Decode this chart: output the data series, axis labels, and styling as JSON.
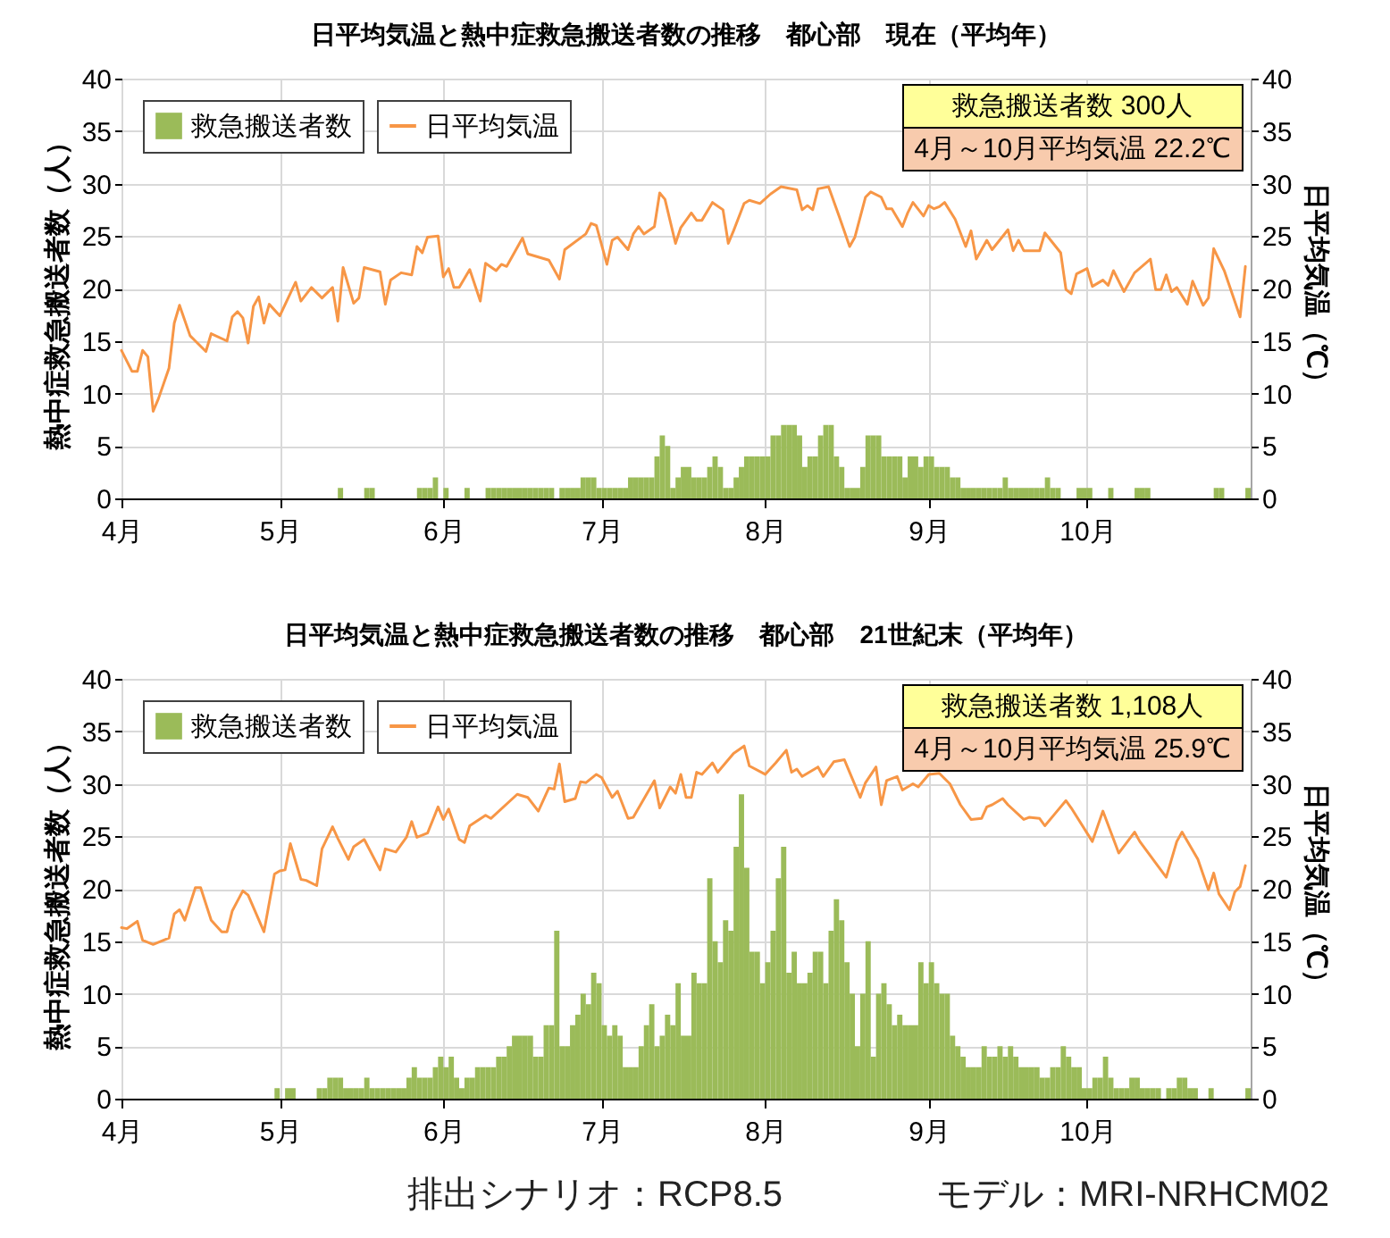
{
  "chart_data": [
    {
      "type": "bar",
      "title": "日平均気温と熱中症救急搬送者数の推移　都心部　現在（平均年）",
      "ylabel": "熱中症救急搬送者数（人）",
      "y2label": "日平均気温（℃）",
      "xlim": [
        "--04-01",
        "--11-01"
      ],
      "xticks": [
        {
          "value": "--04-01",
          "label": "4月"
        },
        {
          "value": "--05-01",
          "label": "5月"
        },
        {
          "value": "--06-01",
          "label": "6月"
        },
        {
          "value": "--07-01",
          "label": "7月"
        },
        {
          "value": "--08-01",
          "label": "8月"
        },
        {
          "value": "--09-01",
          "label": "9月"
        },
        {
          "value": "--10-01",
          "label": "10月"
        }
      ],
      "ylim": [
        0,
        40
      ],
      "yticks": [
        0,
        5,
        10,
        15,
        20,
        25,
        30,
        35,
        40
      ],
      "y2lim": [
        0,
        40
      ],
      "y2ticks": [
        0,
        5,
        10,
        15,
        20,
        25,
        30,
        35,
        40
      ],
      "grid": true,
      "legend": "top left",
      "annotations": [
        "救急搬送者数  300人",
        "4月～10月平均気温  22.2℃"
      ],
      "series": [
        {
          "name": "救急搬送者数",
          "color": "#9bbb59",
          "x": [
            "--05-12",
            "--05-17",
            "--05-18",
            "--05-27",
            "--05-28",
            "--05-29",
            "--05-30",
            "--06-01",
            "--06-05",
            "--06-09",
            "--06-10",
            "--06-11",
            "--06-12",
            "--06-13",
            "--06-14",
            "--06-15",
            "--06-16",
            "--06-17",
            "--06-18",
            "--06-19",
            "--06-20",
            "--06-21",
            "--06-23",
            "--06-24",
            "--06-25",
            "--06-26",
            "--06-27",
            "--06-28",
            "--06-29",
            "--06-30",
            "--07-01",
            "--07-02",
            "--07-03",
            "--07-04",
            "--07-05",
            "--07-06",
            "--07-07",
            "--07-08",
            "--07-09",
            "--07-10",
            "--07-11",
            "--07-12",
            "--07-13",
            "--07-14",
            "--07-15",
            "--07-16",
            "--07-17",
            "--07-18",
            "--07-19",
            "--07-20",
            "--07-21",
            "--07-22",
            "--07-23",
            "--07-24",
            "--07-25",
            "--07-26",
            "--07-27",
            "--07-28",
            "--07-29",
            "--07-30",
            "--07-31",
            "--08-01",
            "--08-02",
            "--08-03",
            "--08-04",
            "--08-05",
            "--08-06",
            "--08-07",
            "--08-08",
            "--08-09",
            "--08-10",
            "--08-11",
            "--08-12",
            "--08-13",
            "--08-14",
            "--08-15",
            "--08-16",
            "--08-17",
            "--08-18",
            "--08-19",
            "--08-20",
            "--08-21",
            "--08-22",
            "--08-23",
            "--08-24",
            "--08-25",
            "--08-26",
            "--08-27",
            "--08-28",
            "--08-29",
            "--08-30",
            "--08-31",
            "--09-01",
            "--09-02",
            "--09-03",
            "--09-04",
            "--09-05",
            "--09-06",
            "--09-07",
            "--09-08",
            "--09-09",
            "--09-10",
            "--09-11",
            "--09-12",
            "--09-13",
            "--09-14",
            "--09-15",
            "--09-16",
            "--09-17",
            "--09-18",
            "--09-19",
            "--09-20",
            "--09-21",
            "--09-22",
            "--09-23",
            "--09-24",
            "--09-25",
            "--09-29",
            "--09-30",
            "--10-01",
            "--10-05",
            "--10-10",
            "--10-11",
            "--10-12",
            "--10-25",
            "--10-26",
            "--10-31"
          ],
          "values": [
            1,
            1,
            1,
            1,
            1,
            1,
            2,
            1,
            1,
            1,
            1,
            1,
            1,
            1,
            1,
            1,
            1,
            1,
            1,
            1,
            1,
            1,
            1,
            1,
            1,
            1,
            2,
            2,
            2,
            1,
            1,
            1,
            1,
            1,
            1,
            2,
            2,
            2,
            2,
            2,
            4,
            6,
            5,
            1,
            2,
            3,
            3,
            2,
            2,
            2,
            3,
            4,
            3,
            1,
            1,
            2,
            3,
            4,
            4,
            4,
            4,
            4,
            6,
            6,
            7,
            7,
            7,
            6,
            3,
            4,
            4,
            6,
            7,
            7,
            4,
            3,
            1,
            1,
            1,
            3,
            6,
            6,
            6,
            4,
            4,
            4,
            4,
            2,
            4,
            4,
            3,
            4,
            4,
            3,
            3,
            3,
            2,
            2,
            1,
            1,
            1,
            1,
            1,
            1,
            1,
            1,
            2,
            1,
            1,
            1,
            1,
            1,
            1,
            1,
            2,
            1,
            1,
            1,
            1,
            1,
            1,
            1,
            1,
            1,
            1,
            1,
            1
          ]
        },
        {
          "name": "日平均気温",
          "type": "line",
          "axis": "y2",
          "color": "#f79646",
          "x": [
            "--04-01",
            "--04-03",
            "--04-04",
            "--04-05",
            "--04-06",
            "--04-07",
            "--04-08",
            "--04-10",
            "--04-11",
            "--04-12",
            "--04-14",
            "--04-15",
            "--04-17",
            "--04-18",
            "--04-21",
            "--04-22",
            "--04-23",
            "--04-24",
            "--04-25",
            "--04-26",
            "--04-27",
            "--04-28",
            "--04-29",
            "--05-01",
            "--05-04",
            "--05-05",
            "--05-07",
            "--05-09",
            "--05-11",
            "--05-12",
            "--05-13",
            "--05-15",
            "--05-16",
            "--05-17",
            "--05-20",
            "--05-21",
            "--05-22",
            "--05-24",
            "--05-26",
            "--05-27",
            "--05-28",
            "--05-29",
            "--05-31",
            "--06-01",
            "--06-02",
            "--06-03",
            "--06-04",
            "--06-06",
            "--06-08",
            "--06-09",
            "--06-11",
            "--06-12",
            "--06-13",
            "--06-16",
            "--06-17",
            "--06-21",
            "--06-23",
            "--06-24",
            "--06-28",
            "--06-29",
            "--06-30",
            "--07-02",
            "--07-03",
            "--07-04",
            "--07-06",
            "--07-07",
            "--07-08",
            "--07-09",
            "--07-11",
            "--07-12",
            "--07-13",
            "--07-15",
            "--07-16",
            "--07-18",
            "--07-19",
            "--07-20",
            "--07-22",
            "--07-24",
            "--07-25",
            "--07-26",
            "--07-28",
            "--07-29",
            "--07-31",
            "--08-02",
            "--08-04",
            "--08-07",
            "--08-08",
            "--08-09",
            "--08-10",
            "--08-11",
            "--08-13",
            "--08-15",
            "--08-17",
            "--08-18",
            "--08-20",
            "--08-21",
            "--08-23",
            "--08-24",
            "--08-25",
            "--08-27",
            "--08-28",
            "--08-29",
            "--08-31",
            "--09-01",
            "--09-02",
            "--09-03",
            "--09-04",
            "--09-06",
            "--09-08",
            "--09-09",
            "--09-10",
            "--09-12",
            "--09-13",
            "--09-16",
            "--09-17",
            "--09-18",
            "--09-19",
            "--09-22",
            "--09-23",
            "--09-26",
            "--09-27",
            "--09-28",
            "--09-29",
            "--10-01",
            "--10-02",
            "--10-04",
            "--10-05",
            "--10-06",
            "--10-08",
            "--10-10",
            "--10-13",
            "--10-14",
            "--10-15",
            "--10-16",
            "--10-17",
            "--10-18",
            "--10-20",
            "--10-21",
            "--10-23",
            "--10-24",
            "--10-25",
            "--10-27",
            "--10-30",
            "--10-31"
          ],
          "values": [
            14.1,
            12.1,
            12.1,
            14.1,
            13.5,
            8.3,
            9.5,
            12.4,
            16.7,
            18.4,
            15.5,
            15.0,
            14.0,
            15.7,
            15.0,
            17.3,
            17.8,
            17.2,
            14.8,
            18.3,
            19.2,
            16.7,
            18.5,
            17.4,
            20.6,
            18.8,
            20.1,
            19.1,
            20.1,
            16.9,
            22.0,
            18.6,
            19.1,
            22.0,
            21.6,
            18.5,
            20.8,
            21.5,
            21.3,
            24.0,
            23.4,
            24.9,
            25.0,
            21.1,
            21.9,
            20.1,
            20.1,
            21.8,
            18.8,
            22.4,
            21.7,
            22.3,
            22.1,
            24.8,
            23.3,
            22.7,
            20.9,
            23.7,
            25.2,
            26.2,
            26.0,
            22.3,
            24.6,
            24.9,
            23.7,
            25.2,
            25.9,
            25.2,
            25.9,
            29.1,
            28.5,
            24.3,
            25.8,
            27.2,
            26.5,
            26.5,
            28.2,
            27.5,
            24.3,
            25.5,
            28.1,
            28.4,
            28.1,
            29.0,
            29.7,
            29.4,
            27.5,
            27.9,
            27.5,
            29.5,
            29.7,
            26.9,
            24.0,
            24.9,
            28.7,
            29.2,
            28.7,
            27.6,
            27.6,
            25.9,
            27.2,
            28.2,
            26.9,
            27.9,
            27.6,
            27.8,
            28.2,
            26.6,
            24.0,
            25.5,
            22.8,
            24.6,
            23.7,
            25.6,
            23.6,
            24.6,
            23.6,
            23.6,
            25.3,
            23.4,
            19.9,
            19.5,
            21.4,
            21.9,
            20.2,
            20.8,
            20.3,
            21.7,
            19.7,
            21.5,
            22.8,
            19.9,
            19.9,
            21.3,
            19.7,
            20.1,
            18.5,
            20.7,
            18.4,
            19.1,
            23.8,
            21.7,
            17.3,
            22.1
          ]
        }
      ]
    },
    {
      "type": "bar",
      "title": "日平均気温と熱中症救急搬送者数の推移　都心部　21世紀末（平均年）",
      "ylabel": "熱中症救急搬送者数（人）",
      "y2label": "日平均気温（℃）",
      "xlim": [
        "--04-01",
        "--11-01"
      ],
      "xticks": [
        {
          "value": "--04-01",
          "label": "4月"
        },
        {
          "value": "--05-01",
          "label": "5月"
        },
        {
          "value": "--06-01",
          "label": "6月"
        },
        {
          "value": "--07-01",
          "label": "7月"
        },
        {
          "value": "--08-01",
          "label": "8月"
        },
        {
          "value": "--09-01",
          "label": "9月"
        },
        {
          "value": "--10-01",
          "label": "10月"
        }
      ],
      "ylim": [
        0,
        40
      ],
      "yticks": [
        0,
        5,
        10,
        15,
        20,
        25,
        30,
        35,
        40
      ],
      "y2lim": [
        0,
        40
      ],
      "y2ticks": [
        0,
        5,
        10,
        15,
        20,
        25,
        30,
        35,
        40
      ],
      "grid": true,
      "legend": "top left",
      "annotations": [
        "救急搬送者数  1,108人",
        "4月～10月平均気温  25.9℃",
        "排出シナリオ：RCP8.5",
        "モデル：MRI-NRHCM02"
      ],
      "series": [
        {
          "name": "救急搬送者数",
          "color": "#9bbb59",
          "x": [
            "--04-30",
            "--05-02",
            "--05-03",
            "--05-08",
            "--05-09",
            "--05-10",
            "--05-11",
            "--05-12",
            "--05-13",
            "--05-14",
            "--05-15",
            "--05-16",
            "--05-17",
            "--05-18",
            "--05-19",
            "--05-20",
            "--05-21",
            "--05-22",
            "--05-23",
            "--05-24",
            "--05-25",
            "--05-26",
            "--05-27",
            "--05-28",
            "--05-29",
            "--05-30",
            "--05-31",
            "--06-01",
            "--06-02",
            "--06-03",
            "--06-04",
            "--06-05",
            "--06-06",
            "--06-07",
            "--06-08",
            "--06-09",
            "--06-10",
            "--06-11",
            "--06-12",
            "--06-13",
            "--06-14",
            "--06-15",
            "--06-16",
            "--06-17",
            "--06-18",
            "--06-19",
            "--06-20",
            "--06-21",
            "--06-22",
            "--06-23",
            "--06-24",
            "--06-25",
            "--06-26",
            "--06-27",
            "--06-28",
            "--06-29",
            "--06-30",
            "--07-01",
            "--07-02",
            "--07-03",
            "--07-04",
            "--07-05",
            "--07-06",
            "--07-07",
            "--07-08",
            "--07-09",
            "--07-10",
            "--07-11",
            "--07-12",
            "--07-13",
            "--07-14",
            "--07-15",
            "--07-16",
            "--07-17",
            "--07-18",
            "--07-19",
            "--07-20",
            "--07-21",
            "--07-22",
            "--07-23",
            "--07-24",
            "--07-25",
            "--07-26",
            "--07-27",
            "--07-28",
            "--07-29",
            "--07-30",
            "--07-31",
            "--08-01",
            "--08-02",
            "--08-03",
            "--08-04",
            "--08-05",
            "--08-06",
            "--08-07",
            "--08-08",
            "--08-09",
            "--08-10",
            "--08-11",
            "--08-12",
            "--08-13",
            "--08-14",
            "--08-15",
            "--08-16",
            "--08-17",
            "--08-18",
            "--08-19",
            "--08-20",
            "--08-21",
            "--08-22",
            "--08-23",
            "--08-24",
            "--08-25",
            "--08-26",
            "--08-27",
            "--08-28",
            "--08-29",
            "--08-30",
            "--08-31",
            "--09-01",
            "--09-02",
            "--09-03",
            "--09-04",
            "--09-05",
            "--09-06",
            "--09-07",
            "--09-08",
            "--09-09",
            "--09-10",
            "--09-11",
            "--09-12",
            "--09-13",
            "--09-14",
            "--09-15",
            "--09-16",
            "--09-17",
            "--09-18",
            "--09-19",
            "--09-20",
            "--09-21",
            "--09-22",
            "--09-23",
            "--09-24",
            "--09-25",
            "--09-26",
            "--09-27",
            "--09-28",
            "--09-29",
            "--09-30",
            "--10-01",
            "--10-02",
            "--10-03",
            "--10-04",
            "--10-05",
            "--10-06",
            "--10-07",
            "--10-08",
            "--10-09",
            "--10-10",
            "--10-11",
            "--10-12",
            "--10-13",
            "--10-14",
            "--10-16",
            "--10-17",
            "--10-18",
            "--10-19",
            "--10-20",
            "--10-21",
            "--10-24",
            "--10-31"
          ],
          "values": [
            1,
            1,
            1,
            1,
            1,
            2,
            2,
            2,
            1,
            1,
            1,
            1,
            2,
            1,
            1,
            1,
            1,
            1,
            1,
            1,
            2,
            3,
            2,
            2,
            2,
            3,
            4,
            3,
            4,
            2,
            1,
            2,
            2,
            3,
            3,
            3,
            3,
            4,
            4,
            5,
            6,
            6,
            6,
            6,
            4,
            4,
            7,
            7,
            16,
            5,
            5,
            7,
            8,
            10,
            9,
            12,
            11,
            7,
            6,
            7,
            6,
            3,
            3,
            3,
            5,
            7,
            9,
            5,
            6,
            8,
            7,
            11,
            6,
            6,
            12,
            11,
            11,
            21,
            15,
            13,
            17,
            16,
            24,
            29,
            22,
            14,
            14,
            11,
            13,
            16,
            21,
            24,
            12,
            14,
            11,
            11,
            12,
            14,
            14,
            11,
            16,
            19,
            17,
            13,
            10,
            5,
            10,
            15,
            4,
            10,
            11,
            9,
            7,
            8,
            7,
            7,
            7,
            13,
            11,
            13,
            11,
            10,
            10,
            6,
            5,
            4,
            3,
            3,
            3,
            5,
            4,
            4,
            5,
            4,
            5,
            4,
            3,
            3,
            3,
            3,
            2,
            2,
            3,
            3,
            5,
            4,
            3,
            3,
            1,
            1,
            2,
            2,
            4,
            2,
            1,
            1,
            1,
            2,
            2,
            1,
            1,
            1,
            1,
            1,
            1,
            2,
            2,
            1,
            1,
            1,
            1
          ]
        },
        {
          "name": "日平均気温",
          "type": "line",
          "axis": "y2",
          "color": "#f79646",
          "x": [
            "--04-01",
            "--04-02",
            "--04-04",
            "--04-05",
            "--04-07",
            "--04-10",
            "--04-11",
            "--04-12",
            "--04-13",
            "--04-15",
            "--04-16",
            "--04-18",
            "--04-20",
            "--04-21",
            "--04-22",
            "--04-24",
            "--04-25",
            "--04-28",
            "--04-30",
            "--05-01",
            "--05-02",
            "--05-03",
            "--05-05",
            "--05-06",
            "--05-08",
            "--05-09",
            "--05-11",
            "--05-12",
            "--05-14",
            "--05-15",
            "--05-17",
            "--05-20",
            "--05-21",
            "--05-23",
            "--05-25",
            "--05-26",
            "--05-27",
            "--05-29",
            "--05-31",
            "--06-01",
            "--06-02",
            "--06-04",
            "--06-05",
            "--06-06",
            "--06-09",
            "--06-10",
            "--06-15",
            "--06-17",
            "--06-19",
            "--06-21",
            "--06-22",
            "--06-23",
            "--06-24",
            "--06-26",
            "--06-27",
            "--06-28",
            "--06-30",
            "--07-01",
            "--07-03",
            "--07-04",
            "--07-06",
            "--07-07",
            "--07-11",
            "--07-12",
            "--07-14",
            "--07-15",
            "--07-16",
            "--07-17",
            "--07-18",
            "--07-19",
            "--07-20",
            "--07-22",
            "--07-23",
            "--07-26",
            "--07-28",
            "--07-29",
            "--08-01",
            "--08-03",
            "--08-05",
            "--08-06",
            "--08-07",
            "--08-08",
            "--08-11",
            "--08-12",
            "--08-14",
            "--08-16",
            "--08-17",
            "--08-19",
            "--08-20",
            "--08-22",
            "--08-23",
            "--08-24",
            "--08-26",
            "--08-27",
            "--08-29",
            "--08-30",
            "--09-01",
            "--09-03",
            "--09-05",
            "--09-07",
            "--09-09",
            "--09-11",
            "--09-12",
            "--09-13",
            "--09-15",
            "--09-16",
            "--09-19",
            "--09-20",
            "--09-22",
            "--09-23",
            "--09-25",
            "--09-27",
            "--09-28",
            "--10-02",
            "--10-04",
            "--10-07",
            "--10-10",
            "--10-11",
            "--10-16",
            "--10-18",
            "--10-19",
            "--10-22",
            "--10-24",
            "--10-25",
            "--10-26",
            "--10-28",
            "--10-29",
            "--10-30",
            "--10-31"
          ],
          "values": [
            16.3,
            16.2,
            16.9,
            15.1,
            14.7,
            15.3,
            17.6,
            18.0,
            17.0,
            20.1,
            20.1,
            17.0,
            15.9,
            15.9,
            17.9,
            19.8,
            19.4,
            15.9,
            21.4,
            21.7,
            21.8,
            24.3,
            20.9,
            20.8,
            20.3,
            23.8,
            25.9,
            24.8,
            22.8,
            24.0,
            24.7,
            21.8,
            23.8,
            23.5,
            24.9,
            26.4,
            24.9,
            25.3,
            27.8,
            26.6,
            27.6,
            24.7,
            24.4,
            26.0,
            27.0,
            26.7,
            29.0,
            28.7,
            27.4,
            29.6,
            29.5,
            31.9,
            28.3,
            28.6,
            30.2,
            30.1,
            30.9,
            30.6,
            28.7,
            29.3,
            26.7,
            26.8,
            30.3,
            27.7,
            29.7,
            29.1,
            30.9,
            28.7,
            28.7,
            31.1,
            30.9,
            32.0,
            31.1,
            32.9,
            33.6,
            31.7,
            30.9,
            32.0,
            33.2,
            31.1,
            31.4,
            30.7,
            31.6,
            30.7,
            32.1,
            32.3,
            31.1,
            28.7,
            30.1,
            31.6,
            28.0,
            30.3,
            30.7,
            29.4,
            30.0,
            29.7,
            30.9,
            31.0,
            30.0,
            28.0,
            26.6,
            26.7,
            27.8,
            28.0,
            28.6,
            28.0,
            26.6,
            26.8,
            26.7,
            26.0,
            27.2,
            28.4,
            27.7,
            24.5,
            27.4,
            23.4,
            25.4,
            24.5,
            21.1,
            24.5,
            25.4,
            22.8,
            19.9,
            21.5,
            19.5,
            18.0,
            19.7,
            20.2,
            22.2
          ]
        }
      ]
    }
  ]
}
